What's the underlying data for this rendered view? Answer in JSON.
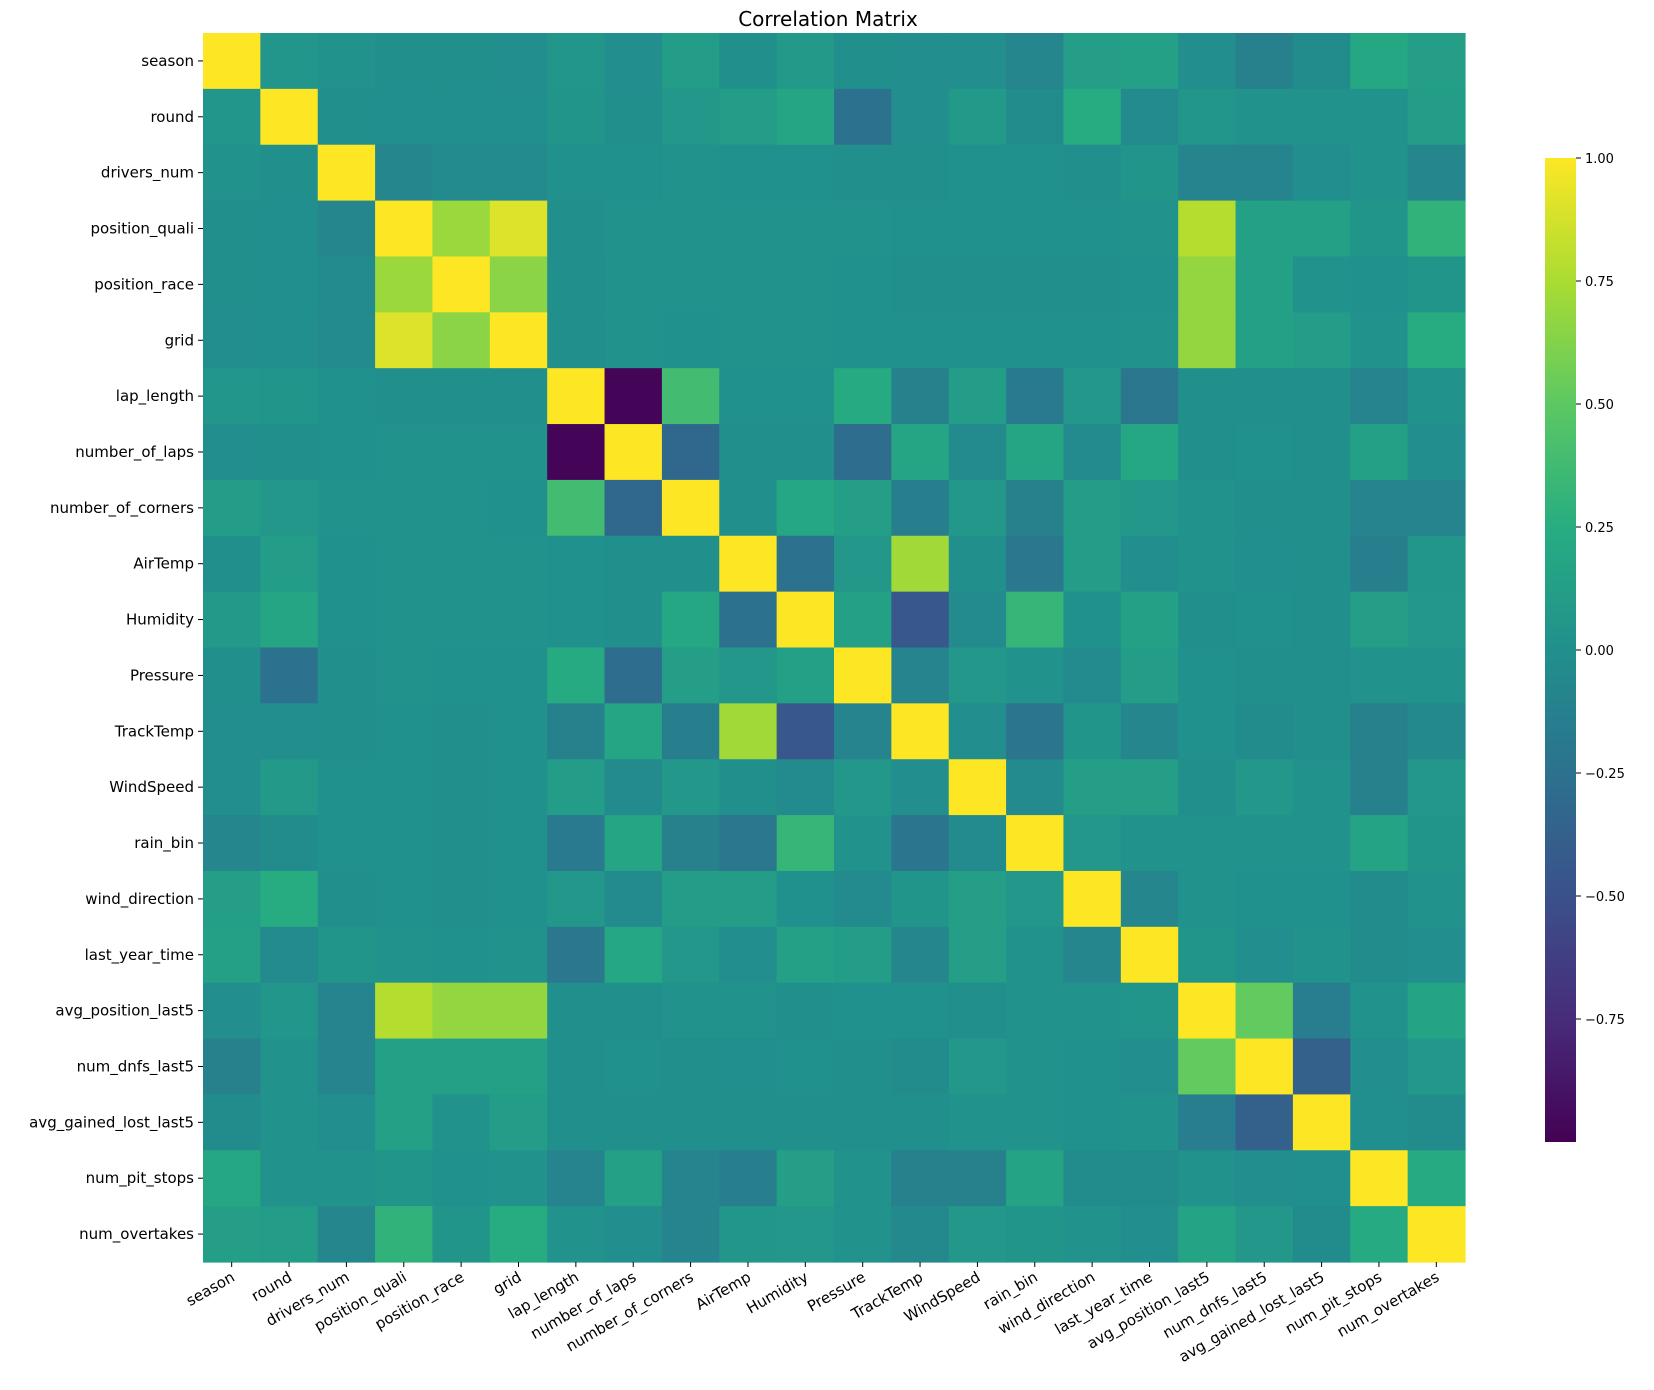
{
  "chart_data": {
    "type": "heatmap",
    "title": "Correlation Matrix",
    "xlabel": "",
    "ylabel": "",
    "colormap": "viridis",
    "vmin": -1.0,
    "vmax": 1.0,
    "colorbar_ticks": [
      "1.00",
      "0.75",
      "0.50",
      "0.25",
      "0.00",
      "−0.25",
      "−0.50",
      "−0.75"
    ],
    "colorbar_tick_values": [
      1.0,
      0.75,
      0.5,
      0.25,
      0.0,
      -0.25,
      -0.5,
      -0.75
    ],
    "labels": [
      "season",
      "round",
      "drivers_num",
      "position_quali",
      "position_race",
      "grid",
      "lap_length",
      "number_of_laps",
      "number_of_corners",
      "AirTemp",
      "Humidity",
      "Pressure",
      "TrackTemp",
      "WindSpeed",
      "rain_bin",
      "wind_direction",
      "last_year_time",
      "avg_position_last5",
      "num_dnfs_last5",
      "avg_gained_lost_last5",
      "num_pit_stops",
      "num_overtakes"
    ],
    "matrix": [
      [
        1.0,
        0.05,
        0.03,
        0.0,
        0.0,
        -0.02,
        0.05,
        -0.02,
        0.1,
        0.0,
        0.08,
        0.0,
        -0.02,
        -0.02,
        -0.08,
        0.12,
        0.14,
        -0.02,
        -0.12,
        -0.03,
        0.2,
        0.12
      ],
      [
        0.05,
        1.0,
        0.0,
        -0.01,
        -0.01,
        -0.01,
        0.04,
        0.0,
        0.06,
        0.1,
        0.18,
        -0.25,
        -0.02,
        0.08,
        -0.03,
        0.24,
        -0.05,
        0.05,
        0.02,
        0.02,
        0.03,
        0.1
      ],
      [
        0.03,
        0.0,
        1.0,
        -0.08,
        -0.04,
        -0.05,
        0.01,
        0.01,
        0.02,
        0.01,
        0.01,
        0.0,
        0.0,
        0.01,
        0.01,
        0.0,
        0.04,
        -0.1,
        -0.1,
        -0.02,
        0.03,
        -0.08
      ],
      [
        0.0,
        -0.01,
        -0.08,
        1.0,
        0.7,
        0.9,
        0.0,
        0.03,
        0.02,
        0.02,
        0.02,
        0.02,
        0.01,
        0.01,
        0.01,
        0.01,
        0.02,
        0.78,
        0.14,
        0.14,
        0.04,
        0.3
      ],
      [
        0.0,
        -0.01,
        -0.04,
        0.7,
        1.0,
        0.65,
        0.0,
        0.02,
        0.02,
        0.02,
        0.02,
        0.01,
        0.0,
        0.0,
        0.0,
        0.0,
        0.01,
        0.68,
        0.14,
        0.02,
        0.01,
        0.04
      ],
      [
        -0.02,
        -0.01,
        -0.05,
        0.9,
        0.65,
        1.0,
        0.0,
        0.02,
        0.01,
        0.03,
        0.02,
        0.01,
        0.01,
        0.01,
        0.01,
        0.01,
        0.02,
        0.68,
        0.14,
        0.1,
        0.02,
        0.24
      ],
      [
        0.05,
        0.04,
        0.01,
        0.0,
        0.0,
        0.0,
        1.0,
        -0.98,
        0.38,
        0.01,
        0.01,
        0.22,
        -0.12,
        0.1,
        -0.18,
        0.06,
        -0.2,
        0.0,
        0.0,
        0.0,
        -0.1,
        0.02
      ],
      [
        -0.02,
        0.0,
        0.01,
        0.03,
        0.02,
        0.02,
        -0.98,
        1.0,
        -0.32,
        0.0,
        0.0,
        -0.28,
        0.18,
        -0.05,
        0.18,
        -0.04,
        0.2,
        0.0,
        0.01,
        0.0,
        0.14,
        -0.02
      ],
      [
        0.1,
        0.06,
        0.02,
        0.02,
        0.02,
        0.01,
        0.38,
        -0.32,
        1.0,
        0.0,
        0.2,
        0.12,
        -0.14,
        0.06,
        -0.12,
        0.1,
        0.06,
        0.02,
        0.0,
        0.0,
        -0.1,
        -0.1
      ],
      [
        0.0,
        0.1,
        0.01,
        0.02,
        0.02,
        0.03,
        0.01,
        0.0,
        0.0,
        1.0,
        -0.25,
        0.06,
        0.72,
        0.0,
        -0.2,
        0.1,
        -0.02,
        0.02,
        -0.01,
        0.0,
        -0.14,
        0.05
      ],
      [
        0.08,
        0.18,
        0.01,
        0.02,
        0.02,
        0.02,
        0.01,
        0.0,
        0.2,
        -0.25,
        1.0,
        0.14,
        -0.45,
        -0.05,
        0.32,
        0.01,
        0.14,
        0.0,
        0.01,
        0.0,
        0.12,
        0.06
      ],
      [
        0.0,
        -0.25,
        0.0,
        0.02,
        0.01,
        0.01,
        0.22,
        -0.28,
        0.12,
        0.06,
        0.14,
        1.0,
        -0.1,
        0.06,
        0.03,
        -0.05,
        0.1,
        0.01,
        0.0,
        0.0,
        0.02,
        0.02
      ],
      [
        -0.02,
        -0.02,
        0.0,
        0.01,
        0.0,
        0.01,
        -0.12,
        0.18,
        -0.14,
        0.72,
        -0.45,
        -0.1,
        1.0,
        -0.02,
        -0.22,
        0.04,
        -0.08,
        0.01,
        -0.03,
        0.0,
        -0.12,
        -0.06
      ],
      [
        -0.02,
        0.08,
        0.01,
        0.01,
        0.0,
        0.01,
        0.1,
        -0.05,
        0.06,
        0.0,
        -0.05,
        0.06,
        -0.02,
        1.0,
        -0.05,
        0.12,
        0.12,
        0.0,
        0.06,
        0.02,
        -0.12,
        0.06
      ],
      [
        -0.08,
        -0.03,
        0.01,
        0.01,
        0.0,
        0.01,
        -0.18,
        0.18,
        -0.12,
        -0.2,
        0.32,
        0.03,
        -0.22,
        -0.05,
        1.0,
        0.06,
        0.02,
        0.02,
        0.02,
        0.02,
        0.16,
        0.04
      ],
      [
        0.12,
        0.24,
        0.0,
        0.01,
        0.0,
        0.01,
        0.06,
        -0.04,
        0.1,
        0.1,
        0.01,
        -0.05,
        0.04,
        0.12,
        0.06,
        1.0,
        -0.08,
        0.02,
        0.01,
        0.01,
        -0.03,
        0.03
      ],
      [
        0.14,
        -0.05,
        0.04,
        0.02,
        0.01,
        0.02,
        -0.2,
        0.2,
        0.06,
        -0.02,
        0.14,
        0.1,
        -0.08,
        0.12,
        0.02,
        -0.08,
        1.0,
        0.04,
        -0.02,
        0.03,
        -0.03,
        -0.02
      ],
      [
        -0.02,
        0.05,
        -0.1,
        0.78,
        0.68,
        0.68,
        0.0,
        0.0,
        0.02,
        0.02,
        0.0,
        0.01,
        0.01,
        0.0,
        0.02,
        0.02,
        0.04,
        1.0,
        0.52,
        -0.15,
        0.02,
        0.16
      ],
      [
        -0.12,
        0.02,
        -0.1,
        0.14,
        0.14,
        0.14,
        0.0,
        0.01,
        0.0,
        -0.01,
        0.01,
        0.0,
        -0.03,
        0.06,
        0.02,
        0.01,
        -0.02,
        0.52,
        1.0,
        -0.38,
        -0.02,
        0.06
      ],
      [
        -0.03,
        0.02,
        -0.02,
        0.14,
        0.02,
        0.1,
        0.0,
        0.0,
        0.0,
        0.0,
        0.0,
        0.0,
        0.0,
        0.02,
        0.02,
        0.01,
        0.03,
        -0.15,
        -0.38,
        1.0,
        -0.01,
        -0.03
      ],
      [
        0.2,
        0.03,
        0.03,
        0.04,
        0.01,
        0.02,
        -0.1,
        0.14,
        -0.1,
        -0.14,
        0.12,
        0.02,
        -0.12,
        -0.12,
        0.16,
        -0.03,
        -0.03,
        0.02,
        -0.02,
        -0.01,
        1.0,
        0.22
      ],
      [
        0.12,
        0.1,
        -0.08,
        0.3,
        0.04,
        0.24,
        0.02,
        -0.02,
        -0.1,
        0.05,
        0.06,
        0.02,
        -0.06,
        0.06,
        0.04,
        0.03,
        -0.02,
        0.16,
        0.06,
        -0.03,
        0.22,
        1.0
      ]
    ]
  }
}
